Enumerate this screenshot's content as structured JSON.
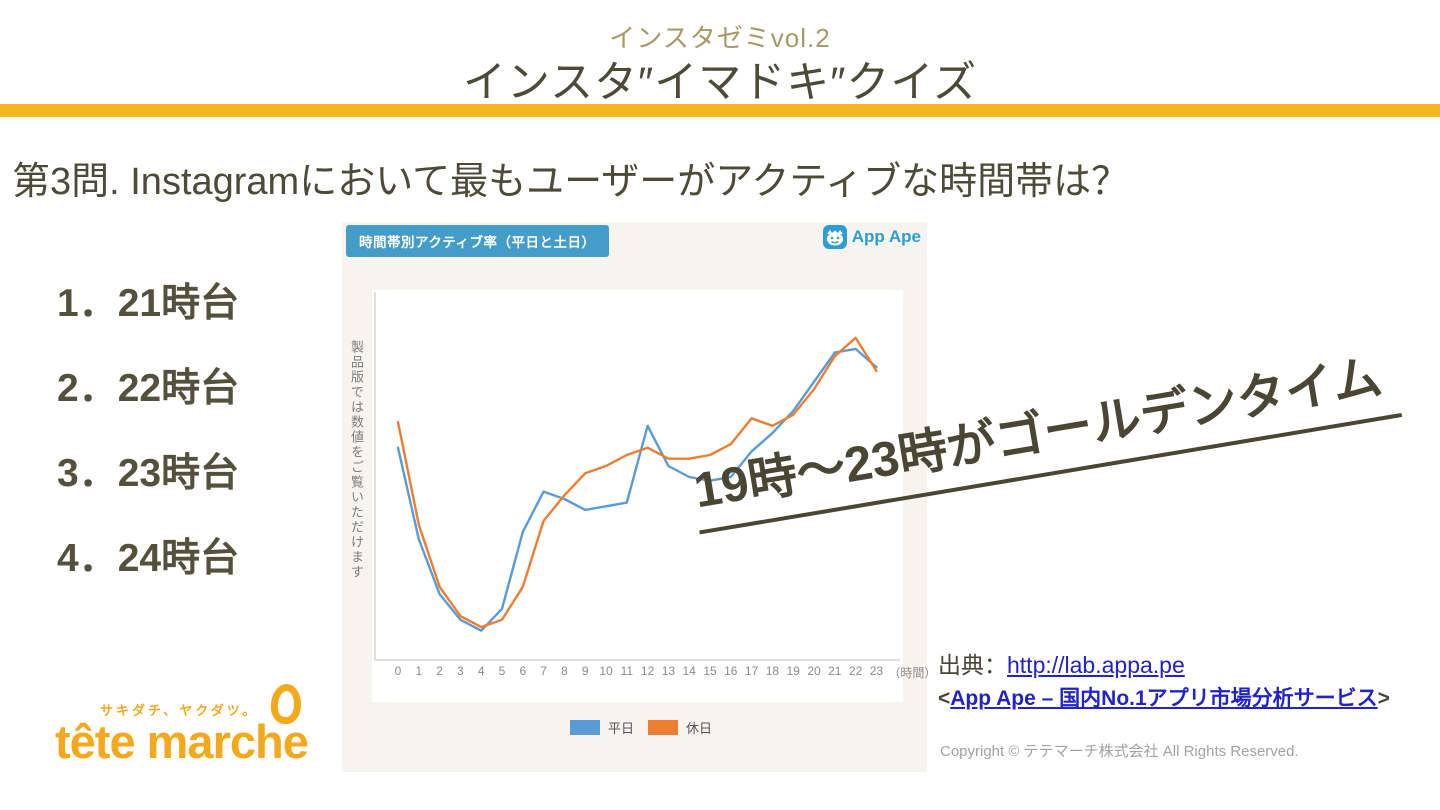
{
  "header": {
    "subtitle": "インスタゼミvol.2",
    "title": "インスタ″イマドキ″クイズ"
  },
  "question": {
    "text": "第3問. Instagramにおいて最もユーザーがアクティブな時間帯は？"
  },
  "options": [
    {
      "label": "1．21時台"
    },
    {
      "label": "2．22時台"
    },
    {
      "label": "3．23時台"
    },
    {
      "label": "4．24時台"
    }
  ],
  "chart_panel": {
    "badge": "時間帯別アクティブ率（平日と土日）",
    "logo_text": "App Ape",
    "y_axis_note": "製品版では数値をご覧いただけます",
    "x_unit": "（時間）"
  },
  "chart_data": {
    "type": "line",
    "title": "時間帯別アクティブ率（平日と土日）",
    "x": [
      0,
      1,
      2,
      3,
      4,
      5,
      6,
      7,
      8,
      9,
      10,
      11,
      12,
      13,
      14,
      15,
      16,
      17,
      18,
      19,
      20,
      21,
      22,
      23
    ],
    "xlabel": "（時間）",
    "ylabel": "製品版では数値をご覧いただけます",
    "ylim": [
      0,
      100
    ],
    "y_ticks_visible": false,
    "grid": false,
    "legend_position": "bottom",
    "series": [
      {
        "name": "平日",
        "color": "#5b9bd5",
        "values": [
          58,
          33,
          18,
          11,
          8,
          14,
          35,
          46,
          44,
          41,
          42,
          43,
          64,
          53,
          50,
          49,
          50,
          57,
          62,
          68,
          76,
          84,
          85,
          80
        ]
      },
      {
        "name": "休日",
        "color": "#ed7d31",
        "values": [
          65,
          37,
          20,
          12,
          9,
          11,
          20,
          38,
          45,
          51,
          53,
          56,
          58,
          55,
          55,
          56,
          59,
          66,
          64,
          67,
          74,
          83,
          88,
          79
        ]
      }
    ]
  },
  "callout": {
    "text": "19時～23時がゴールデンタイム"
  },
  "source": {
    "prefix": "出典：",
    "url_label": "http://lab.appa.pe",
    "bracket_open": "<",
    "service_label": "App Ape – 国内No.1アプリ市場分析サービス",
    "bracket_close": ">"
  },
  "copyright": "Copyright © テテマーチ株式会社 All Rights Reserved.",
  "brand": {
    "tagline": "サキダチ、ヤクダツ。",
    "name": "tête marche"
  },
  "colors": {
    "accent_yellow": "#f3b71f",
    "text_dark_olive": "#4e4a38",
    "badge_blue": "#449cc8",
    "appape_blue": "#2e9cd6",
    "link_blue": "#2222cc",
    "brand_orange": "#f6a81c",
    "card_background": "#f6f4ef",
    "weekday_line": "#5b9bd5",
    "holiday_line": "#ed7d31"
  }
}
